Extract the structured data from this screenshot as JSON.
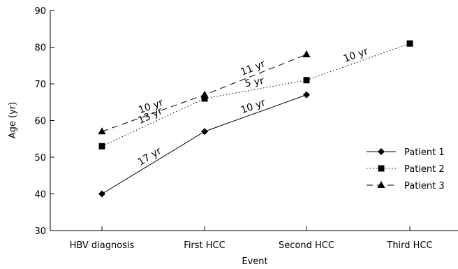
{
  "chart_data": {
    "type": "line",
    "xlabel": "Event",
    "ylabel": "Age (yr)",
    "categories": [
      "HBV diagnosis",
      "First HCC",
      "Second HCC",
      "Third HCC"
    ],
    "ylim": [
      30,
      90
    ],
    "yticks": [
      30,
      40,
      50,
      60,
      70,
      80,
      90
    ],
    "grid": false,
    "legend_position": "right",
    "series": [
      {
        "name": "Patient 1",
        "marker": "diamond",
        "line_style": "solid",
        "color": "#000000",
        "values": [
          40,
          57,
          67,
          null
        ]
      },
      {
        "name": "Patient 2",
        "marker": "square",
        "line_style": "dotted",
        "color": "#000000",
        "values": [
          53,
          66,
          71,
          81
        ]
      },
      {
        "name": "Patient 3",
        "marker": "triangle",
        "line_style": "dashed",
        "color": "#000000",
        "values": [
          57,
          67,
          78,
          null
        ]
      }
    ],
    "annotations": [
      {
        "text": "17 yr",
        "series": "Patient 1",
        "segment": [
          0,
          1
        ]
      },
      {
        "text": "10 yr",
        "series": "Patient 1",
        "segment": [
          1,
          2
        ]
      },
      {
        "text": "13 yr",
        "series": "Patient 2",
        "segment": [
          0,
          1
        ]
      },
      {
        "text": "5 yr",
        "series": "Patient 2",
        "segment": [
          1,
          2
        ]
      },
      {
        "text": "10 yr",
        "series": "Patient 2",
        "segment": [
          2,
          3
        ]
      },
      {
        "text": "10 yr",
        "series": "Patient 3",
        "segment": [
          0,
          1
        ]
      },
      {
        "text": "11 yr",
        "series": "Patient 3",
        "segment": [
          1,
          2
        ]
      }
    ]
  }
}
